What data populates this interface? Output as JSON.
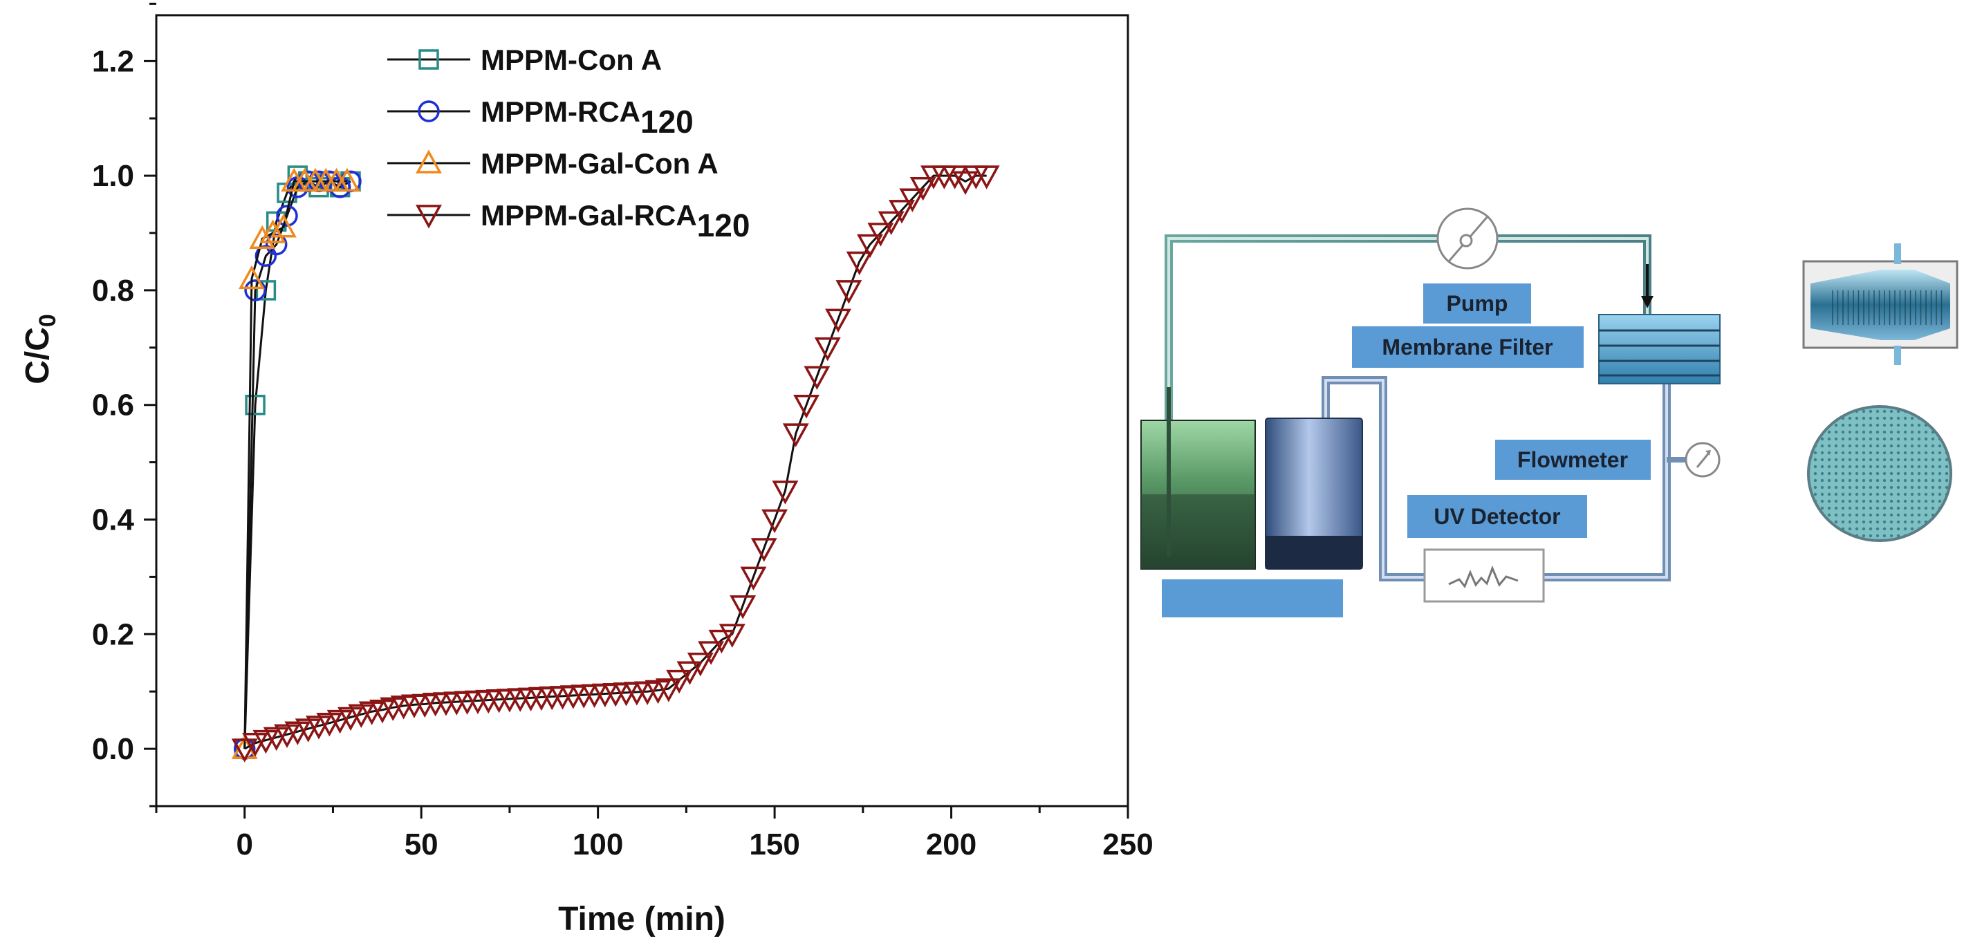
{
  "chart_data": {
    "type": "scatter",
    "title": "",
    "xlabel": "Time (min)",
    "ylabel": {
      "main": "C/C",
      "sub": "0"
    },
    "xlim": [
      -25,
      250
    ],
    "ylim": [
      -0.1,
      1.28
    ],
    "x_ticks": [
      "0",
      "50",
      "100",
      "150",
      "200",
      "250"
    ],
    "y_ticks": [
      "0.0",
      "0.2",
      "0.4",
      "0.6",
      "0.8",
      "1.0",
      "1.2"
    ],
    "legend_position": "top-left",
    "series": [
      {
        "name": "MPPM-Con A",
        "name_sub": "",
        "marker": "square",
        "color": "#2a8c87",
        "x": [
          0,
          3,
          6,
          9,
          12,
          15,
          18,
          21,
          24,
          27,
          30
        ],
        "y": [
          0,
          0.6,
          0.8,
          0.92,
          0.97,
          1.0,
          0.99,
          0.98,
          0.99,
          0.98,
          0.99
        ]
      },
      {
        "name": "MPPM-RCA",
        "name_sub": "120",
        "marker": "circle",
        "color": "#1f2fd6",
        "x": [
          0,
          3,
          6,
          9,
          12,
          15,
          18,
          21,
          24,
          27,
          30
        ],
        "y": [
          0,
          0.8,
          0.86,
          0.88,
          0.93,
          0.98,
          0.99,
          0.99,
          0.99,
          0.98,
          0.99
        ]
      },
      {
        "name": "MPPM-Gal-Con A",
        "name_sub": "",
        "marker": "triangle-up",
        "color": "#f08a1c",
        "x": [
          0,
          2,
          5,
          8,
          11,
          14,
          17,
          20,
          23,
          26,
          29
        ],
        "y": [
          0,
          0.82,
          0.89,
          0.9,
          0.91,
          0.99,
          0.99,
          0.99,
          0.99,
          0.99,
          0.99
        ]
      },
      {
        "name": "MPPM-Gal-RCA",
        "name_sub": "120",
        "marker": "triangle-down",
        "color": "#8b1414",
        "x": [
          0,
          3,
          6,
          9,
          12,
          15,
          18,
          21,
          24,
          27,
          30,
          33,
          36,
          39,
          42,
          45,
          48,
          51,
          54,
          57,
          60,
          63,
          66,
          69,
          72,
          75,
          78,
          81,
          84,
          87,
          90,
          93,
          96,
          99,
          102,
          105,
          108,
          111,
          114,
          117,
          120,
          123,
          126,
          129,
          132,
          135,
          138,
          141,
          144,
          147,
          150,
          153,
          156,
          159,
          162,
          165,
          168,
          171,
          174,
          177,
          180,
          183,
          186,
          189,
          192,
          195,
          198,
          201,
          204,
          207,
          210
        ],
        "y": [
          0.0,
          0.01,
          0.015,
          0.02,
          0.025,
          0.03,
          0.035,
          0.04,
          0.045,
          0.05,
          0.055,
          0.06,
          0.065,
          0.068,
          0.072,
          0.075,
          0.077,
          0.078,
          0.08,
          0.081,
          0.082,
          0.083,
          0.084,
          0.085,
          0.086,
          0.087,
          0.088,
          0.089,
          0.09,
          0.091,
          0.092,
          0.093,
          0.094,
          0.095,
          0.096,
          0.097,
          0.098,
          0.099,
          0.1,
          0.102,
          0.105,
          0.12,
          0.135,
          0.15,
          0.17,
          0.19,
          0.2,
          0.25,
          0.3,
          0.35,
          0.4,
          0.45,
          0.55,
          0.6,
          0.65,
          0.7,
          0.75,
          0.8,
          0.85,
          0.88,
          0.9,
          0.92,
          0.94,
          0.96,
          0.98,
          1.0,
          1.0,
          1.0,
          0.99,
          1.0,
          1.0
        ]
      }
    ]
  },
  "diagram": {
    "labels": {
      "pump": "Pump",
      "membrane_filter": "Membrane Filter",
      "flowmeter": "Flowmeter",
      "uv_detector": "UV Detector",
      "blank": ""
    }
  }
}
